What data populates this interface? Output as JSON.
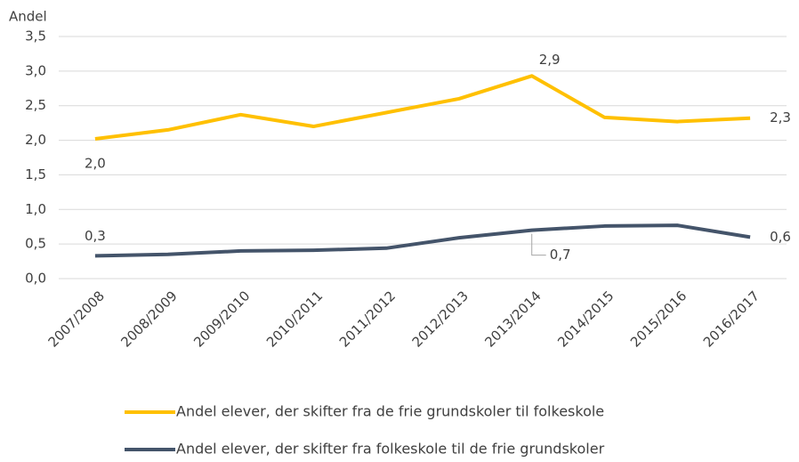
{
  "chart_data": {
    "type": "line",
    "y_label": "Andel",
    "categories": [
      "2007/2008",
      "2008/2009",
      "2009/2010",
      "2010/2011",
      "2011/2012",
      "2012/2013",
      "2013/2014",
      "2014/2015",
      "2015/2016",
      "2016/2017"
    ],
    "series": [
      {
        "name": "Andel elever, der skifter fra de frie grundskoler til folkeskole",
        "color": "#FFC000",
        "values": [
          2.02,
          2.15,
          2.37,
          2.2,
          2.4,
          2.6,
          2.93,
          2.33,
          2.27,
          2.32
        ],
        "value_labels": [
          "2,0",
          null,
          null,
          null,
          null,
          null,
          "2,9",
          null,
          null,
          "2,3"
        ]
      },
      {
        "name": "Andel elever, der skifter fra folkeskole til de frie grundskoler",
        "color": "#44546A",
        "values": [
          0.33,
          0.35,
          0.4,
          0.41,
          0.44,
          0.59,
          0.7,
          0.76,
          0.77,
          0.6
        ],
        "value_labels": [
          "0,3",
          null,
          null,
          null,
          null,
          null,
          "0,7",
          null,
          null,
          "0,6"
        ]
      }
    ],
    "ylim": [
      0,
      3.5
    ],
    "yticks": [
      {
        "value": 0,
        "label": "0,0"
      },
      {
        "value": 0.5,
        "label": "0,5"
      },
      {
        "value": 1,
        "label": "1,0"
      },
      {
        "value": 1.5,
        "label": "1,5"
      },
      {
        "value": 2,
        "label": "2,0"
      },
      {
        "value": 2.5,
        "label": "2,5"
      },
      {
        "value": 3,
        "label": "3,0"
      },
      {
        "value": 3.5,
        "label": "3,5"
      }
    ],
    "grid": true
  }
}
